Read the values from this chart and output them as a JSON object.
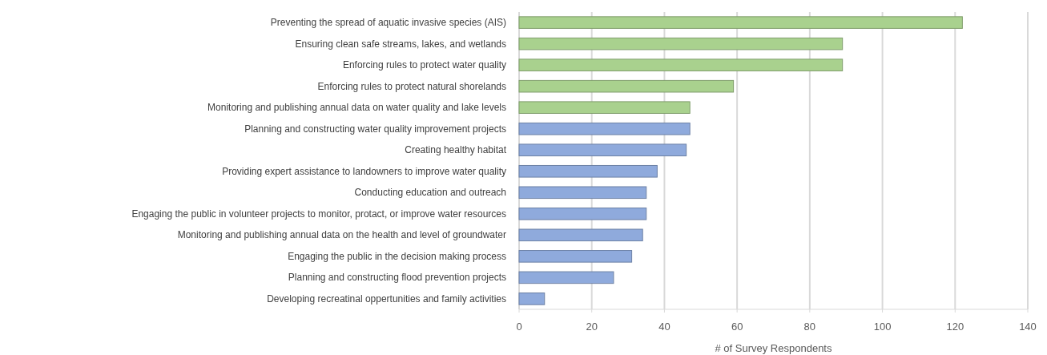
{
  "chart_data": {
    "type": "bar",
    "orientation": "horizontal",
    "xlabel": "# of Survey Respondents",
    "categories": [
      "Preventing the spread of aquatic invasive species (AIS)",
      "Ensuring clean safe streams, lakes, and wetlands",
      "Enforcing rules to protect water quality",
      "Enforcing rules to protect natural shorelands",
      "Monitoring and publishing annual data on water quality and lake levels",
      "Planning and constructing water quality improvement projects",
      "Creating healthy habitat",
      "Providing expert assistance to landowners to improve water quality",
      "Conducting education and outreach",
      "Engaging the public in volunteer projects to monitor, protact, or improve water resources",
      "Monitoring and publishing annual data on the health and level of groundwater",
      "Engaging the public in the decision making process",
      "Planning and constructing flood prevention projects",
      "Developing recreatinal oppertunities and family activities"
    ],
    "values": [
      122,
      89,
      89,
      59,
      47,
      47,
      46,
      38,
      35,
      35,
      34,
      31,
      26,
      7
    ],
    "colors": [
      "#a9d18e",
      "#a9d18e",
      "#a9d18e",
      "#a9d18e",
      "#a9d18e",
      "#8faadc",
      "#8faadc",
      "#8faadc",
      "#8faadc",
      "#8faadc",
      "#8faadc",
      "#8faadc",
      "#8faadc",
      "#8faadc"
    ],
    "xlim": [
      0,
      140
    ],
    "xticks": [
      0,
      20,
      40,
      60,
      80,
      100,
      120,
      140
    ],
    "grid": "x"
  }
}
